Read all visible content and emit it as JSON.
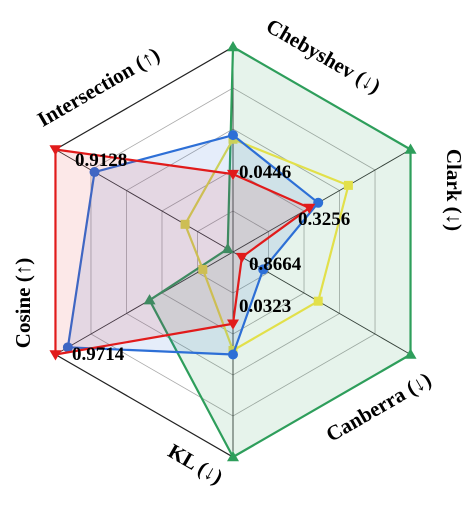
{
  "chart_data": {
    "type": "radar",
    "axes": [
      "Chebyshev (↓)",
      "Clark (↓)",
      "Canberra (↓)",
      "KL (↓)",
      "Cosine (↑)",
      "Intersection (↑)"
    ],
    "rings": 5,
    "grid": true,
    "legend": "none",
    "series": [
      {
        "color": "#2e9e5b",
        "marker": "triangle-up",
        "values": [
          1.0,
          1.0,
          1.0,
          1.0,
          0.47,
          0.03
        ],
        "fill_opacity": 0.12
      },
      {
        "color": "#e2e04a",
        "marker": "square",
        "values": [
          0.55,
          0.65,
          0.48,
          0.48,
          0.17,
          0.27
        ],
        "fill_opacity": 0.0
      },
      {
        "color": "#2d6fd6",
        "marker": "circle",
        "values": [
          0.57,
          0.48,
          0.17,
          0.5,
          0.93,
          0.78
        ],
        "fill_opacity": 0.12
      },
      {
        "color": "#e11b1b",
        "marker": "triangle-down",
        "values": [
          0.38,
          0.43,
          0.05,
          0.35,
          1.0,
          1.0
        ],
        "fill_opacity": 0.1
      }
    ],
    "value_labels": [
      {
        "axis": 0,
        "text": "0.0446"
      },
      {
        "axis": 1,
        "text": "0.3256"
      },
      {
        "axis": 2,
        "text": "0.8664"
      },
      {
        "axis": 3,
        "text": "0.0323"
      },
      {
        "axis": 4,
        "text": "0.9714"
      },
      {
        "axis": 5,
        "text": "0.9128"
      }
    ]
  }
}
